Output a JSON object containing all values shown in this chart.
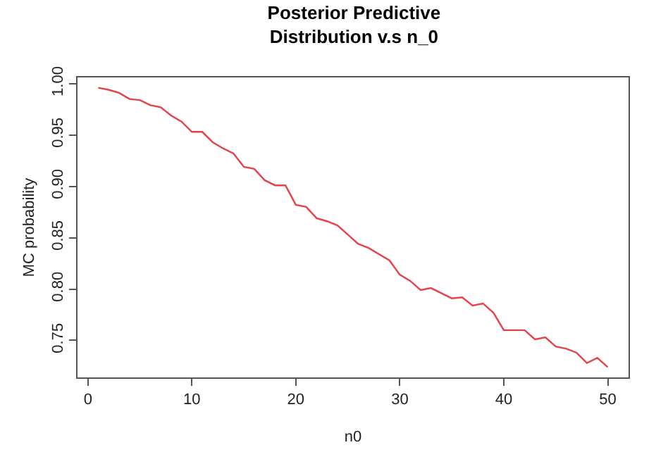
{
  "chart_data": {
    "type": "line",
    "title": "Posterior Predictive\nDistribution v.s n_0",
    "xlabel": "n0",
    "ylabel": "MC probability",
    "x": [
      1,
      2,
      3,
      4,
      5,
      6,
      7,
      8,
      9,
      10,
      11,
      12,
      13,
      14,
      15,
      16,
      17,
      18,
      19,
      20,
      21,
      22,
      23,
      24,
      25,
      26,
      27,
      28,
      29,
      30,
      31,
      32,
      33,
      34,
      35,
      36,
      37,
      38,
      39,
      40,
      41,
      42,
      43,
      44,
      45,
      46,
      47,
      48,
      49,
      50
    ],
    "series": [
      {
        "color": "#e8404a",
        "values": [
          0.996,
          0.994,
          0.991,
          0.985,
          0.984,
          0.979,
          0.977,
          0.969,
          0.963,
          0.953,
          0.953,
          0.943,
          0.937,
          0.932,
          0.919,
          0.917,
          0.906,
          0.901,
          0.901,
          0.882,
          0.88,
          0.869,
          0.866,
          0.862,
          0.853,
          0.844,
          0.84,
          0.834,
          0.828,
          0.814,
          0.808,
          0.799,
          0.801,
          0.796,
          0.791,
          0.792,
          0.784,
          0.786,
          0.777,
          0.76,
          0.76,
          0.76,
          0.751,
          0.753,
          0.744,
          0.742,
          0.738,
          0.728,
          0.733,
          0.724
        ]
      }
    ],
    "xlim": [
      -1,
      52
    ],
    "ylim": [
      0.714,
      1.006
    ],
    "xticks": [
      0,
      10,
      20,
      30,
      40,
      50
    ],
    "yticks": [
      {
        "value": 0.75,
        "label": "0.75"
      },
      {
        "value": 0.8,
        "label": "0.80"
      },
      {
        "value": 0.85,
        "label": "0.85"
      },
      {
        "value": 0.9,
        "label": "0.90"
      },
      {
        "value": 0.95,
        "label": "0.95"
      },
      {
        "value": 1.0,
        "label": "1.00"
      }
    ],
    "marker": "none",
    "line_style": "solid"
  }
}
